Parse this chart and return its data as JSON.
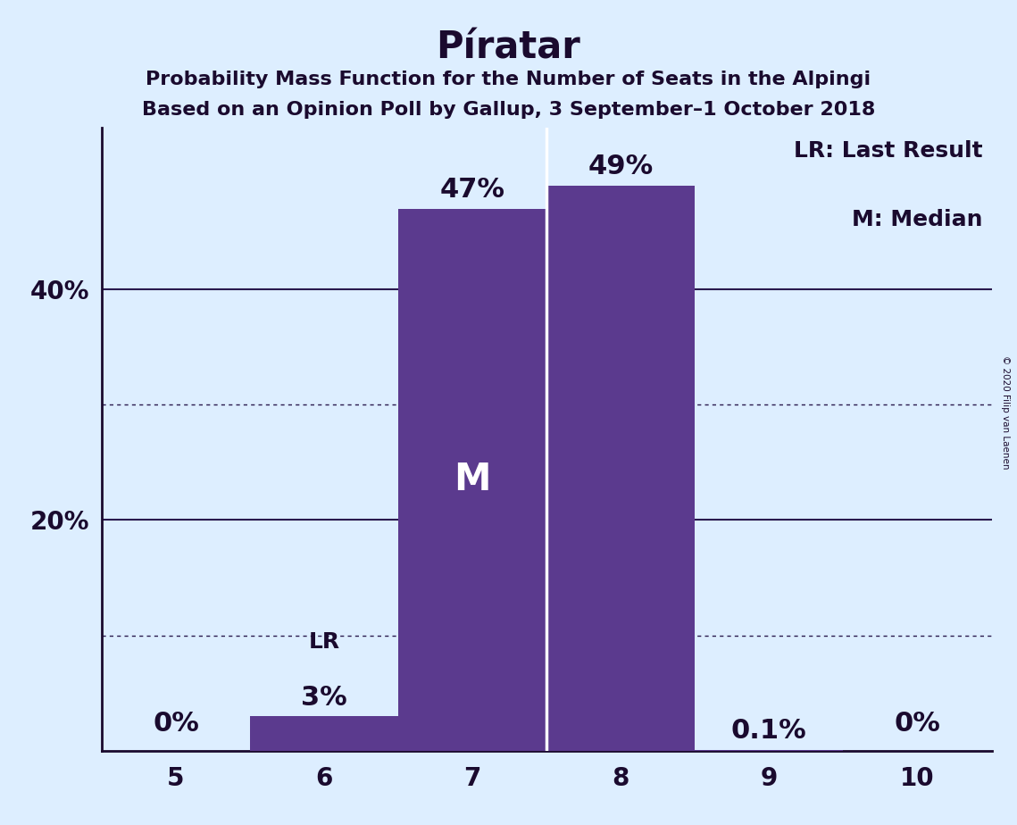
{
  "title": "Píratar",
  "subtitle1": "Probability Mass Function for the Number of Seats in the Alpingi",
  "subtitle2": "Based on an Opinion Poll by Gallup, 3 September–1 October 2018",
  "copyright": "© 2020 Filip van Laenen",
  "categories": [
    5,
    6,
    7,
    8,
    9,
    10
  ],
  "values": [
    0.0,
    3.0,
    47.0,
    49.0,
    0.1,
    0.0
  ],
  "bar_labels": [
    "0%",
    "3%",
    "47%",
    "49%",
    "0.1%",
    "0%"
  ],
  "bar_color": "#5b3a8e",
  "background_color": "#ddeeff",
  "text_color": "#1a0a2e",
  "median_seat": 7,
  "last_result_seat": 6,
  "median_label": "M",
  "lr_label": "LR",
  "legend_lr": "LR: Last Result",
  "legend_m": "M: Median",
  "ymax": 54,
  "solid_line_values": [
    20,
    40
  ],
  "dotted_line_values": [
    10,
    30
  ],
  "title_fontsize": 30,
  "subtitle_fontsize": 16,
  "label_fontsize": 18,
  "tick_fontsize": 20,
  "legend_fontsize": 18,
  "bar_label_fontsize": 22,
  "median_label_fontsize": 30,
  "lr_label_fontsize": 18
}
